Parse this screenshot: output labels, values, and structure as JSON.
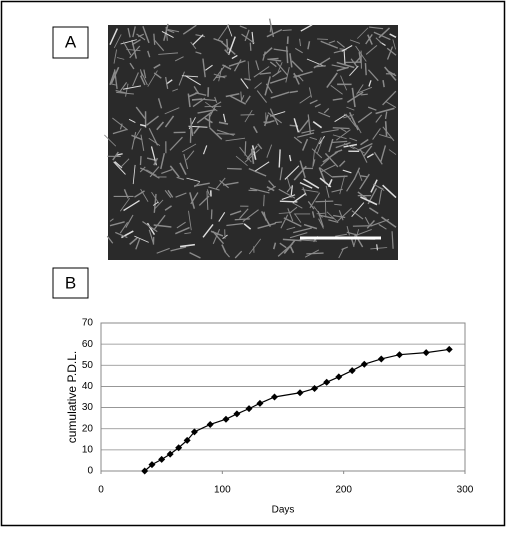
{
  "image_panel": {
    "label": "A"
  },
  "chart_data": {
    "type": "line",
    "panel_label": "B",
    "x_label": "Days",
    "y_label": "cumulative P.D.L.",
    "x": [
      36,
      42,
      50,
      57,
      64,
      71,
      77,
      90,
      103,
      112,
      122,
      131,
      143,
      164,
      176,
      186,
      196,
      207,
      217,
      231,
      246,
      268,
      287
    ],
    "series": [
      {
        "color": "#000000",
        "values": [
          0,
          3,
          5.5,
          8,
          11,
          14.5,
          18.5,
          22,
          24.5,
          27,
          29.5,
          32,
          35,
          37,
          39,
          42,
          44.5,
          47.5,
          50.5,
          53,
          55,
          56,
          57.5
        ]
      }
    ],
    "xlim": [
      0,
      300
    ],
    "ylim": [
      0,
      70
    ],
    "xticks": [
      0,
      100,
      200,
      300
    ],
    "yticks": [
      0,
      10,
      20,
      30,
      40,
      50,
      60,
      70
    ],
    "grid": true
  }
}
